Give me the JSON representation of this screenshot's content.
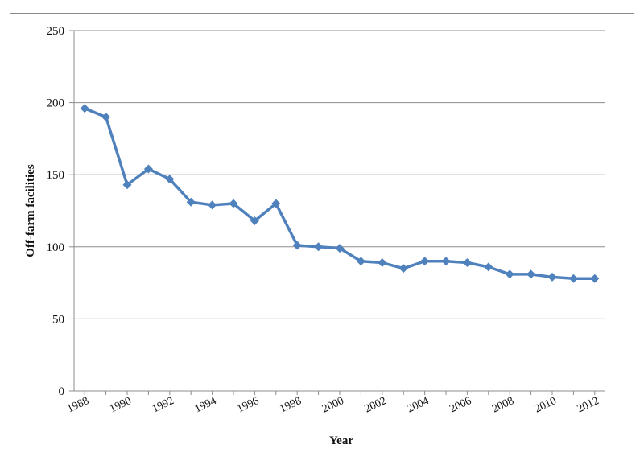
{
  "chart_data": {
    "type": "line",
    "xlabel": "Year",
    "ylabel": "Off-farm facilities",
    "ylim": [
      0,
      250
    ],
    "yticks": [
      0,
      50,
      100,
      150,
      200,
      250
    ],
    "xticks": [
      1988,
      1990,
      1992,
      1994,
      1996,
      1998,
      2000,
      2002,
      2004,
      2006,
      2008,
      2010,
      2012
    ],
    "grid": "horizontal",
    "color": "#4f81bd",
    "series": [
      {
        "x": [
          1988,
          1989,
          1990,
          1991,
          1992,
          1993,
          1994,
          1995,
          1996,
          1997,
          1998,
          1999,
          2000,
          2001,
          2002,
          2003,
          2004,
          2005,
          2006,
          2007,
          2008,
          2009,
          2010,
          2011,
          2012
        ],
        "y": [
          196,
          190,
          143,
          154,
          147,
          131,
          129,
          130,
          118,
          130,
          101,
          100,
          99,
          90,
          89,
          85,
          90,
          90,
          89,
          86,
          81,
          81,
          79,
          78,
          78
        ]
      }
    ]
  }
}
